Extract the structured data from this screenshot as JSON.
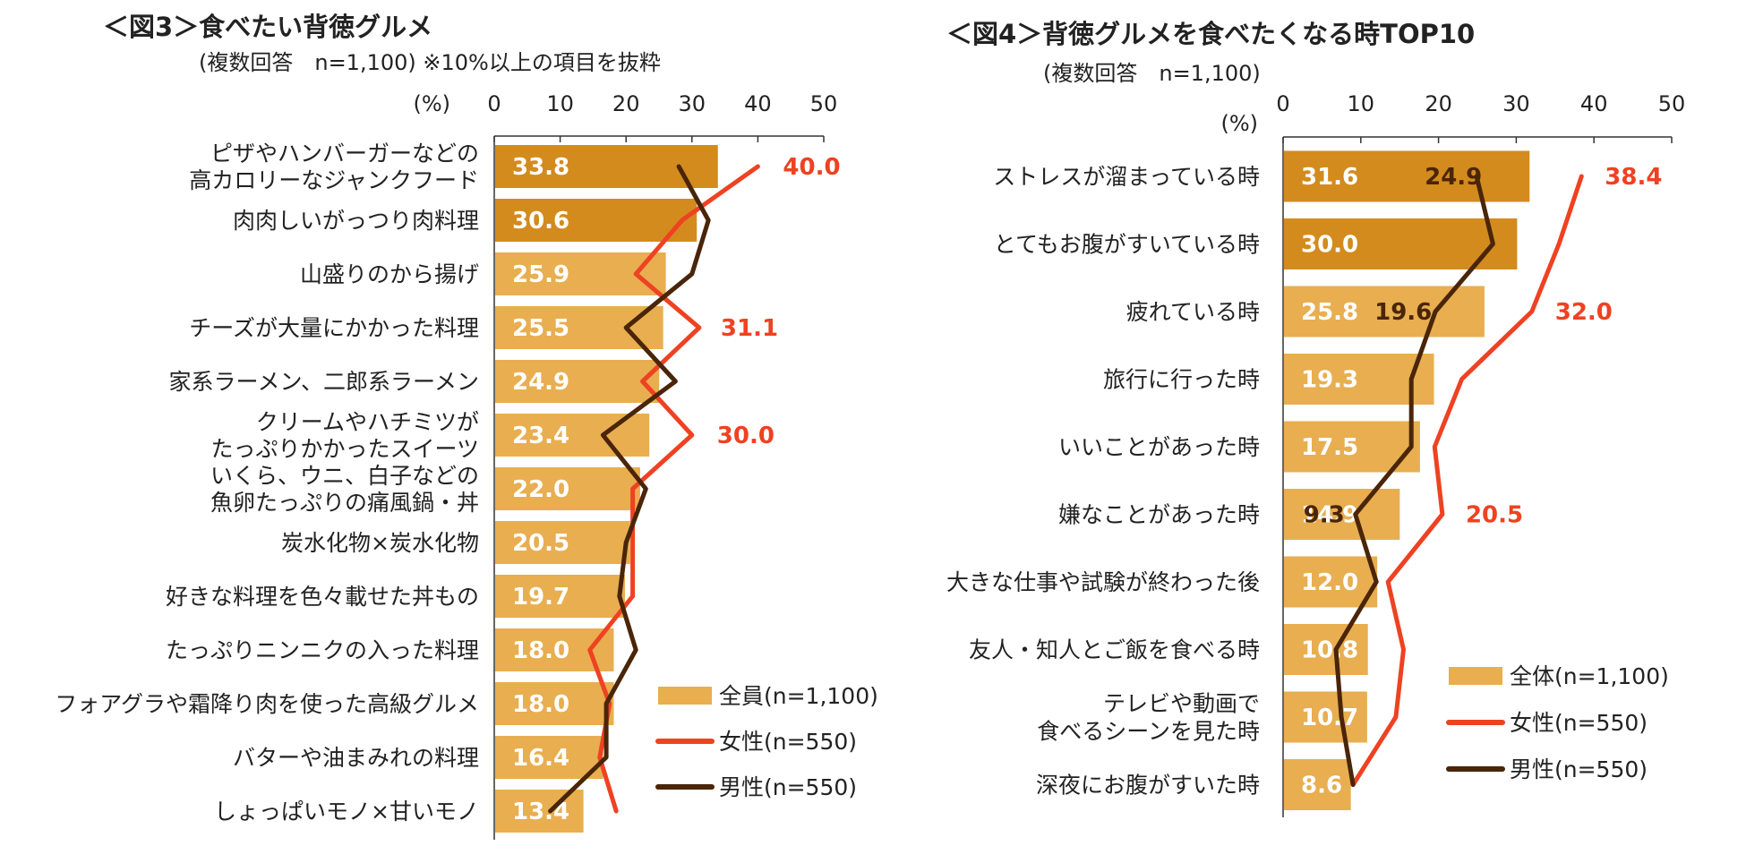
{
  "colors": {
    "bar_dark": "#D38B1E",
    "bar_light": "#E8AE50",
    "female": "#EE4222",
    "male": "#4A2508",
    "text": "#222222",
    "axis": "#333333"
  },
  "chart_data": [
    {
      "type": "bar",
      "orientation": "horizontal",
      "title": "＜図3＞食べたい背徳グルメ",
      "subtitle": "(複数回答　n=1,100) ※10%以上の項目を抜粋",
      "unit_label": "(%)",
      "xlim": [
        0,
        50
      ],
      "ticks": [
        "0",
        "10",
        "20",
        "30",
        "40",
        "50"
      ],
      "categories": [
        "ピザやハンバーガーなどの\n高カロリーなジャンクフード",
        "肉肉しいがっつり肉料理",
        "山盛りのから揚げ",
        "チーズが大量にかかった料理",
        "家系ラーメン、二郎系ラーメン",
        "クリームやハチミツが\nたっぷりかかったスイーツ",
        "いくら、ウニ、白子などの\n魚卵たっぷりの痛風鍋・丼",
        "炭水化物×炭水化物",
        "好きな料理を色々載せた丼もの",
        "たっぷりニンニクの入った料理",
        "フォアグラや霜降り肉を使った高級グルメ",
        "バターや油まみれの料理",
        "しょっぱいモノ×甘いモノ"
      ],
      "series": [
        {
          "name": "全員(n=1,100)",
          "kind": "bar",
          "values": [
            33.8,
            30.6,
            25.9,
            25.5,
            24.9,
            23.4,
            22.0,
            20.5,
            19.7,
            18.0,
            18.0,
            16.4,
            13.4
          ]
        },
        {
          "name": "女性(n=550)",
          "kind": "line",
          "values": [
            40.0,
            28.5,
            21.5,
            31.1,
            22.5,
            30.0,
            21.0,
            21.0,
            21.0,
            14.5,
            17.5,
            16.0,
            18.5
          ]
        },
        {
          "name": "男性(n=550)",
          "kind": "line",
          "values": [
            28.0,
            32.5,
            30.0,
            20.0,
            27.5,
            16.5,
            23.0,
            20.0,
            19.0,
            21.5,
            17.0,
            17.0,
            8.5
          ]
        }
      ],
      "highlight_count": 2,
      "annotations": [
        {
          "series": 1,
          "index": 0,
          "label": "40.0"
        },
        {
          "series": 1,
          "index": 3,
          "label": "31.1"
        },
        {
          "series": 1,
          "index": 5,
          "label": "30.0"
        }
      ],
      "legend": [
        "全員(n=1,100)",
        "女性(n=550)",
        "男性(n=550)"
      ]
    },
    {
      "type": "bar",
      "orientation": "horizontal",
      "title": "＜図4＞背徳グルメを食べたくなる時TOP10",
      "subtitle": "(複数回答　n=1,100)",
      "unit_label": "(%)",
      "xlim": [
        0,
        50
      ],
      "ticks": [
        "0",
        "10",
        "20",
        "30",
        "40",
        "50"
      ],
      "categories": [
        "ストレスが溜まっている時",
        "とてもお腹がすいている時",
        "疲れている時",
        "旅行に行った時",
        "いいことがあった時",
        "嫌なことがあった時",
        "大きな仕事や試験が終わった後",
        "友人・知人とご飯を食べる時",
        "テレビや動画で\n食べるシーンを見た時",
        "深夜にお腹がすいた時"
      ],
      "series": [
        {
          "name": "全体(n=1,100)",
          "kind": "bar",
          "values": [
            31.6,
            30.0,
            25.8,
            19.3,
            17.5,
            14.9,
            12.0,
            10.8,
            10.7,
            8.6
          ]
        },
        {
          "name": "女性(n=550)",
          "kind": "line",
          "values": [
            38.4,
            35.5,
            32.0,
            23.0,
            19.5,
            20.5,
            13.5,
            15.5,
            14.5,
            9.0
          ]
        },
        {
          "name": "男性(n=550)",
          "kind": "line",
          "values": [
            24.9,
            27.0,
            19.6,
            16.5,
            16.5,
            9.3,
            12.0,
            6.8,
            7.5,
            9.0
          ]
        }
      ],
      "highlight_count": 2,
      "annotations": [
        {
          "series": 2,
          "index": 0,
          "label": "24.9"
        },
        {
          "series": 1,
          "index": 0,
          "label": "38.4"
        },
        {
          "series": 2,
          "index": 2,
          "label": "19.6"
        },
        {
          "series": 1,
          "index": 2,
          "label": "32.0"
        },
        {
          "series": 2,
          "index": 5,
          "label": "9.3"
        },
        {
          "series": 1,
          "index": 5,
          "label": "20.5"
        }
      ],
      "legend": [
        "全体(n=1,100)",
        "女性(n=550)",
        "男性(n=550)"
      ]
    }
  ]
}
